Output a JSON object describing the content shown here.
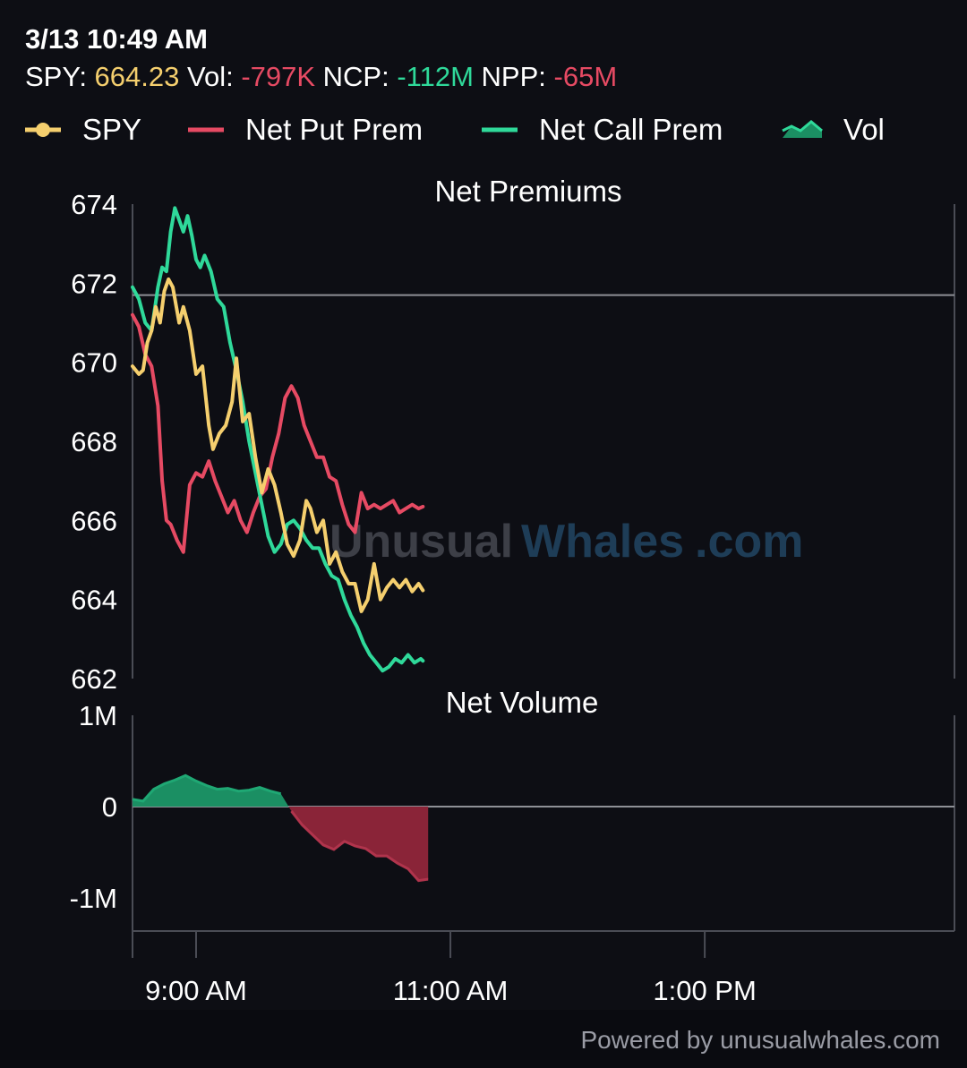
{
  "header": {
    "time": "3/13 10:49 AM",
    "spy_label": "SPY: ",
    "spy_value": "664.23",
    "vol_label": " Vol: ",
    "vol_value": "-797K",
    "ncp_label": " NCP: ",
    "ncp_value": "-112M",
    "npp_label": " NPP: ",
    "npp_value": "-65M"
  },
  "legend": {
    "spy": "SPY",
    "put": "Net Put Prem",
    "call": "Net Call Prem",
    "vol": "Vol"
  },
  "colors": {
    "background": "#0d0e14",
    "spy": "#f5cf6e",
    "put": "#e64a63",
    "call": "#2fd99a",
    "vol_positive": "#1b8f63",
    "vol_negative": "#8a2438",
    "grid": "#4a4c55",
    "refline": "#8e9096",
    "text": "#ffffff",
    "footer_text": "#9a9ca5"
  },
  "footer": {
    "text": "Powered by unusualwhales.com"
  },
  "watermark": {
    "part1": "Unusual",
    "part2": "Whales",
    "part3": ".com"
  },
  "chart_data": [
    {
      "type": "line",
      "title": "Net Premiums",
      "x_unit": "minutes after 8:30 AM",
      "ylim": [
        662,
        674
      ],
      "yticks": [
        674,
        672,
        670,
        668,
        666,
        664,
        662
      ],
      "reference_value": 671.7,
      "series": [
        {
          "name": "SPY",
          "x": [
            0,
            3,
            5,
            7,
            9,
            11,
            13,
            15,
            17,
            19,
            22,
            24,
            27,
            30,
            33,
            36,
            38,
            41,
            44,
            47,
            49,
            52,
            55,
            58,
            61,
            64,
            67,
            70,
            73,
            76,
            79,
            82,
            84,
            87,
            90,
            93,
            96,
            99,
            102,
            105,
            108,
            111,
            114,
            117,
            120,
            123,
            126,
            129,
            132,
            135,
            137
          ],
          "y": [
            669.9,
            669.7,
            669.8,
            670.5,
            670.8,
            671.4,
            671.0,
            671.8,
            672.1,
            671.9,
            671.0,
            671.4,
            670.8,
            669.7,
            669.9,
            668.4,
            667.8,
            668.2,
            668.4,
            669.0,
            670.1,
            668.5,
            668.7,
            667.6,
            666.7,
            667.3,
            666.9,
            666.2,
            665.4,
            665.1,
            665.5,
            666.5,
            666.3,
            665.7,
            666.0,
            664.9,
            665.2,
            664.7,
            664.4,
            664.4,
            663.7,
            664.0,
            664.9,
            664.0,
            664.3,
            664.5,
            664.3,
            664.5,
            664.2,
            664.4,
            664.23
          ]
        },
        {
          "name": "Net Put Prem",
          "x": [
            0,
            3,
            6,
            9,
            12,
            14,
            16,
            18,
            21,
            24,
            27,
            30,
            33,
            36,
            39,
            42,
            45,
            48,
            51,
            54,
            57,
            60,
            63,
            66,
            69,
            72,
            75,
            78,
            81,
            84,
            87,
            90,
            93,
            96,
            99,
            102,
            105,
            108,
            111,
            114,
            117,
            120,
            123,
            126,
            129,
            132,
            135,
            137
          ],
          "y": [
            671.2,
            670.9,
            670.2,
            669.9,
            668.9,
            667.0,
            666.0,
            665.9,
            665.5,
            665.2,
            666.9,
            667.2,
            667.1,
            667.5,
            667.0,
            666.6,
            666.2,
            666.5,
            666.0,
            665.7,
            666.2,
            666.6,
            666.8,
            667.6,
            668.2,
            669.1,
            669.4,
            669.1,
            668.4,
            668.0,
            667.6,
            667.6,
            667.1,
            667.0,
            666.4,
            665.9,
            665.7,
            666.7,
            666.3,
            666.4,
            666.3,
            666.4,
            666.5,
            666.2,
            666.3,
            666.4,
            666.3,
            666.35
          ]
        },
        {
          "name": "Net Call Prem",
          "x": [
            0,
            3,
            6,
            9,
            12,
            14,
            16,
            18,
            20,
            22,
            24,
            26,
            28,
            30,
            32,
            34,
            37,
            40,
            43,
            46,
            49,
            52,
            55,
            58,
            61,
            64,
            67,
            70,
            73,
            76,
            79,
            82,
            85,
            88,
            91,
            94,
            97,
            100,
            103,
            106,
            109,
            112,
            115,
            118,
            121,
            124,
            127,
            130,
            133,
            136,
            137
          ],
          "y": [
            671.9,
            671.6,
            671.0,
            670.8,
            671.9,
            672.4,
            672.3,
            673.3,
            673.9,
            673.6,
            673.3,
            673.7,
            673.2,
            672.6,
            672.4,
            672.7,
            672.3,
            671.6,
            671.4,
            670.5,
            669.8,
            669.0,
            668.0,
            667.2,
            666.4,
            665.6,
            665.2,
            665.4,
            665.9,
            666.0,
            665.8,
            665.5,
            665.3,
            665.3,
            664.9,
            664.6,
            664.5,
            664.0,
            663.6,
            663.3,
            662.9,
            662.6,
            662.4,
            662.2,
            662.3,
            662.5,
            662.4,
            662.6,
            662.4,
            662.5,
            662.45
          ]
        }
      ]
    },
    {
      "type": "area",
      "title": "Net Volume",
      "series_name": "Vol",
      "ylim": [
        -1000000,
        1000000
      ],
      "ytick_labels": [
        "1M",
        "0",
        "-1M"
      ],
      "ytick_values": [
        1000000,
        0,
        -1000000
      ],
      "xticks": [
        0,
        30,
        150,
        270
      ],
      "xtick_labels": [
        "",
        "9:00 AM",
        "11:00 AM",
        "1:00 PM"
      ],
      "xlim": [
        0,
        390
      ],
      "x": [
        0,
        5,
        10,
        15,
        20,
        25,
        30,
        35,
        40,
        45,
        50,
        55,
        60,
        65,
        70,
        75,
        80,
        85,
        90,
        95,
        100,
        105,
        110,
        115,
        120,
        125,
        130,
        135,
        139,
        139.5
      ],
      "y": [
        80000,
        60000,
        190000,
        250000,
        290000,
        340000,
        280000,
        230000,
        190000,
        200000,
        170000,
        180000,
        210000,
        170000,
        140000,
        -50000,
        -200000,
        -310000,
        -420000,
        -470000,
        -380000,
        -430000,
        -460000,
        -540000,
        -540000,
        -620000,
        -680000,
        -810000,
        -797000,
        -797000
      ]
    }
  ]
}
